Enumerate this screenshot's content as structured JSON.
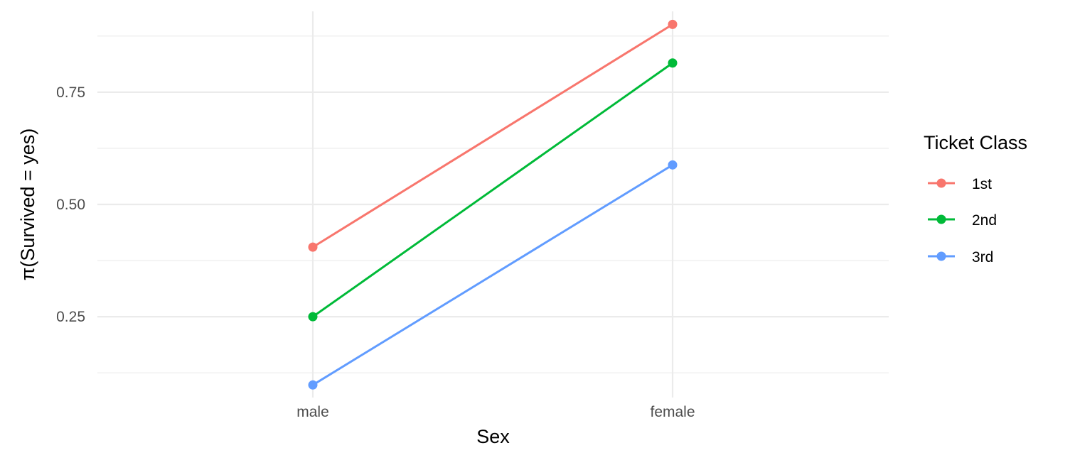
{
  "chart_data": {
    "type": "line",
    "categories": [
      "male",
      "female"
    ],
    "xlabel": "Sex",
    "ylabel": "π(Survived = yes)",
    "ylim": [
      0.07,
      0.93
    ],
    "y_major_ticks": [
      0.25,
      0.5,
      0.75
    ],
    "y_tick_labels": [
      "0.25",
      "0.50",
      "0.75"
    ],
    "y_minor_ticks": [
      0.125,
      0.375,
      0.625,
      0.875
    ],
    "grid": true,
    "legend": {
      "title": "Ticket Class",
      "placement": "right"
    },
    "series": [
      {
        "name": "1st",
        "color": "#F8766D",
        "values": [
          0.405,
          0.901
        ]
      },
      {
        "name": "2nd",
        "color": "#00BA38",
        "values": [
          0.25,
          0.815
        ]
      },
      {
        "name": "3rd",
        "color": "#619CFF",
        "values": [
          0.098,
          0.588
        ]
      }
    ]
  }
}
